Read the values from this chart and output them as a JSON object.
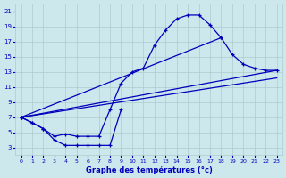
{
  "bg_color": "#cce8ed",
  "grid_color": "#aacccc",
  "line_color": "#0000bb",
  "xlabel": "Graphe des températures (°c)",
  "xlabel_color": "#0000bb",
  "xlim": [
    -0.5,
    23.5
  ],
  "ylim": [
    2,
    22
  ],
  "yticks": [
    3,
    5,
    7,
    9,
    11,
    13,
    15,
    17,
    19,
    21
  ],
  "xticks": [
    0,
    1,
    2,
    3,
    4,
    5,
    6,
    7,
    8,
    9,
    10,
    11,
    12,
    13,
    14,
    15,
    16,
    17,
    18,
    19,
    20,
    21,
    22,
    23
  ],
  "curve_main_x": [
    0,
    1,
    2,
    3,
    4,
    5,
    6,
    7,
    8,
    9,
    10,
    11,
    12,
    13,
    14,
    15,
    16,
    17,
    18
  ],
  "curve_main_y": [
    7.0,
    6.3,
    5.5,
    4.5,
    4.8,
    4.5,
    4.5,
    4.5,
    8.0,
    11.5,
    13.0,
    13.5,
    16.5,
    18.5,
    20.0,
    20.5,
    20.5,
    19.2,
    17.5
  ],
  "curve_dip_x": [
    0,
    1,
    2,
    3,
    4,
    5,
    6,
    7,
    8,
    9
  ],
  "curve_dip_y": [
    7.0,
    6.3,
    5.5,
    4.0,
    3.3,
    3.3,
    3.3,
    3.3,
    3.3,
    8.0
  ],
  "curve_end_x": [
    0,
    18,
    19,
    20,
    21,
    22,
    23
  ],
  "curve_end_y": [
    7.0,
    17.5,
    15.3,
    14.0,
    13.5,
    13.2,
    13.2
  ],
  "line1_x": [
    0,
    23
  ],
  "line1_y": [
    7.0,
    13.2
  ],
  "line2_x": [
    0,
    23
  ],
  "line2_y": [
    7.0,
    12.2
  ]
}
